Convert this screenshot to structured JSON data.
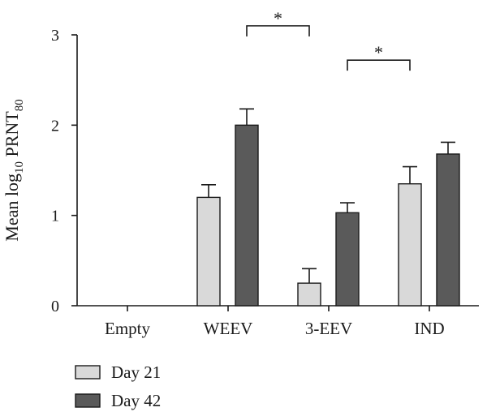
{
  "chart_data": {
    "type": "bar",
    "ylabel": {
      "main": "Mean log",
      "sub": "10",
      "rest": " PRNT",
      "sub2": "80"
    },
    "xlabel": "",
    "ylim": [
      0,
      3
    ],
    "yticks": [
      "0",
      "1",
      "2",
      "3"
    ],
    "categories": [
      "Empty",
      "WEEV",
      "3-EEV",
      "IND"
    ],
    "series": [
      {
        "name": "Day 21",
        "color": "#d9d9d9",
        "values": [
          0,
          1.2,
          0.25,
          1.35
        ],
        "errors": [
          0,
          0.14,
          0.16,
          0.19
        ]
      },
      {
        "name": "Day 42",
        "color": "#5a5a5a",
        "values": [
          0,
          2.0,
          1.03,
          1.68
        ],
        "errors": [
          0,
          0.18,
          0.11,
          0.13
        ]
      }
    ],
    "significance": [
      {
        "from": 1,
        "to": 2,
        "label": "*",
        "level": 3.1
      },
      {
        "from": 2,
        "to": 3,
        "label": "*",
        "level": 2.72
      }
    ],
    "legend_position": "bottom-left",
    "grid": false
  }
}
